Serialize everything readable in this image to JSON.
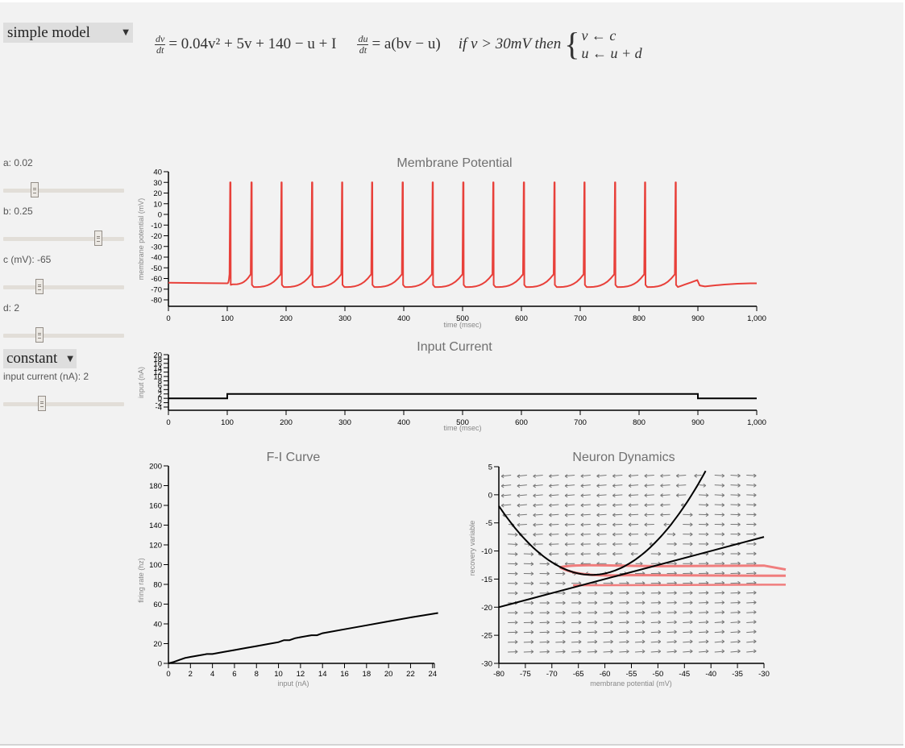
{
  "model_select": {
    "value": "simple model"
  },
  "equations": {
    "dv_num": "dv",
    "dv_den": "dt",
    "dv_rhs": "= 0.04v² + 5v + 140 − u + I",
    "du_num": "du",
    "du_den": "dt",
    "du_rhs": "= a(bv − u)",
    "condition": "if v > 30mV then",
    "reset_v": "v ← c",
    "reset_u": "u ← u + d"
  },
  "params": [
    {
      "label": "a: 0.02",
      "thumb_pos": 0.25
    },
    {
      "label": "b: 0.25",
      "thumb_pos": 0.78
    },
    {
      "label": "c (mV): -65",
      "thumb_pos": 0.3
    },
    {
      "label": "d: 2",
      "thumb_pos": 0.3
    }
  ],
  "input_mode_select": {
    "value": "constant"
  },
  "input_current": {
    "label": "input current (nA): 2",
    "thumb_pos": 0.31
  },
  "colors": {
    "trace": "#e8403a",
    "axis": "#000000",
    "arrow": "#777777",
    "trajectory": "#f07070"
  },
  "chart_data": [
    {
      "id": "membrane",
      "type": "line",
      "title": "Membrane Potential",
      "xlabel": "time (msec)",
      "ylabel": "membrane potential (mV)",
      "xlim": [
        0,
        1000
      ],
      "ylim": [
        -80,
        40
      ],
      "xticks": [
        "0",
        "100",
        "200",
        "300",
        "400",
        "500",
        "600",
        "700",
        "800",
        "900",
        "1,000"
      ],
      "yticks": [
        "40",
        "30",
        "20",
        "10",
        "0",
        "-10",
        "-20",
        "-30",
        "-40",
        "-50",
        "-60",
        "-70",
        "-80"
      ],
      "resting_mV": -64,
      "spike_peak_mV": 30,
      "reset_mV": -68,
      "spike_times_ms": [
        105,
        141,
        192,
        244,
        295,
        346,
        398,
        449,
        501,
        552,
        604,
        656,
        707,
        759,
        810,
        862
      ],
      "input_on_ms": [
        100,
        900
      ]
    },
    {
      "id": "input",
      "type": "line",
      "title": "Input Current",
      "xlabel": "time (msec)",
      "ylabel": "input (nA)",
      "xlim": [
        0,
        1000
      ],
      "ylim": [
        -4,
        20
      ],
      "xticks": [
        "0",
        "100",
        "200",
        "300",
        "400",
        "500",
        "600",
        "700",
        "800",
        "900",
        "1,000"
      ],
      "yticks": [
        "20",
        "18",
        "16",
        "14",
        "12",
        "10",
        "8",
        "6",
        "4",
        "2",
        "0",
        "-2",
        "-4"
      ],
      "x": [
        0,
        100,
        100,
        900,
        900,
        1000
      ],
      "y": [
        0,
        0,
        2,
        2,
        0,
        0
      ]
    },
    {
      "id": "fi",
      "type": "line",
      "title": "F-I Curve",
      "xlabel": "input (nA)",
      "ylabel": "firing rate (hz)",
      "xlim": [
        0,
        24.5
      ],
      "ylim": [
        0,
        200
      ],
      "xticks": [
        "0",
        "2",
        "4",
        "6",
        "8",
        "10",
        "12",
        "14",
        "16",
        "18",
        "20",
        "22",
        "24"
      ],
      "yticks": [
        "200",
        "180",
        "160",
        "140",
        "120",
        "100",
        "80",
        "60",
        "40",
        "20",
        "0"
      ],
      "x": [
        0,
        0.5,
        1,
        1.5,
        2,
        3,
        3.5,
        4,
        5,
        6,
        7,
        8,
        9,
        10,
        10.5,
        11,
        11.5,
        12,
        13,
        13.5,
        14,
        16,
        18,
        20,
        22,
        24.5
      ],
      "y": [
        0,
        1.5,
        3.5,
        5.5,
        6.5,
        8.5,
        9.5,
        9.5,
        11.5,
        13.5,
        15.5,
        17.5,
        19.5,
        21.5,
        23.5,
        23.5,
        25.5,
        26.5,
        28.5,
        28.5,
        30.5,
        34.5,
        38.5,
        42.5,
        46.5,
        51
      ]
    },
    {
      "id": "phase",
      "type": "line",
      "title": "Neuron Dynamics",
      "xlabel": "membrane potential (mV)",
      "ylabel": "recovery variable",
      "xlim": [
        -80,
        -30
      ],
      "ylim": [
        -30,
        5
      ],
      "xticks": [
        "-80",
        "-75",
        "-70",
        "-65",
        "-60",
        "-55",
        "-50",
        "-45",
        "-40",
        "-35",
        "-30"
      ],
      "yticks": [
        "5",
        "0",
        "-5",
        "-10",
        "-15",
        "-20",
        "-25",
        "-30"
      ],
      "v_nullcline": "u = 0.04v² + 5v + 140 + I (I=2)",
      "u_nullcline": "u = 0.25v",
      "trajectory_u": [
        -12.7,
        -14.3,
        -16.1
      ]
    }
  ]
}
